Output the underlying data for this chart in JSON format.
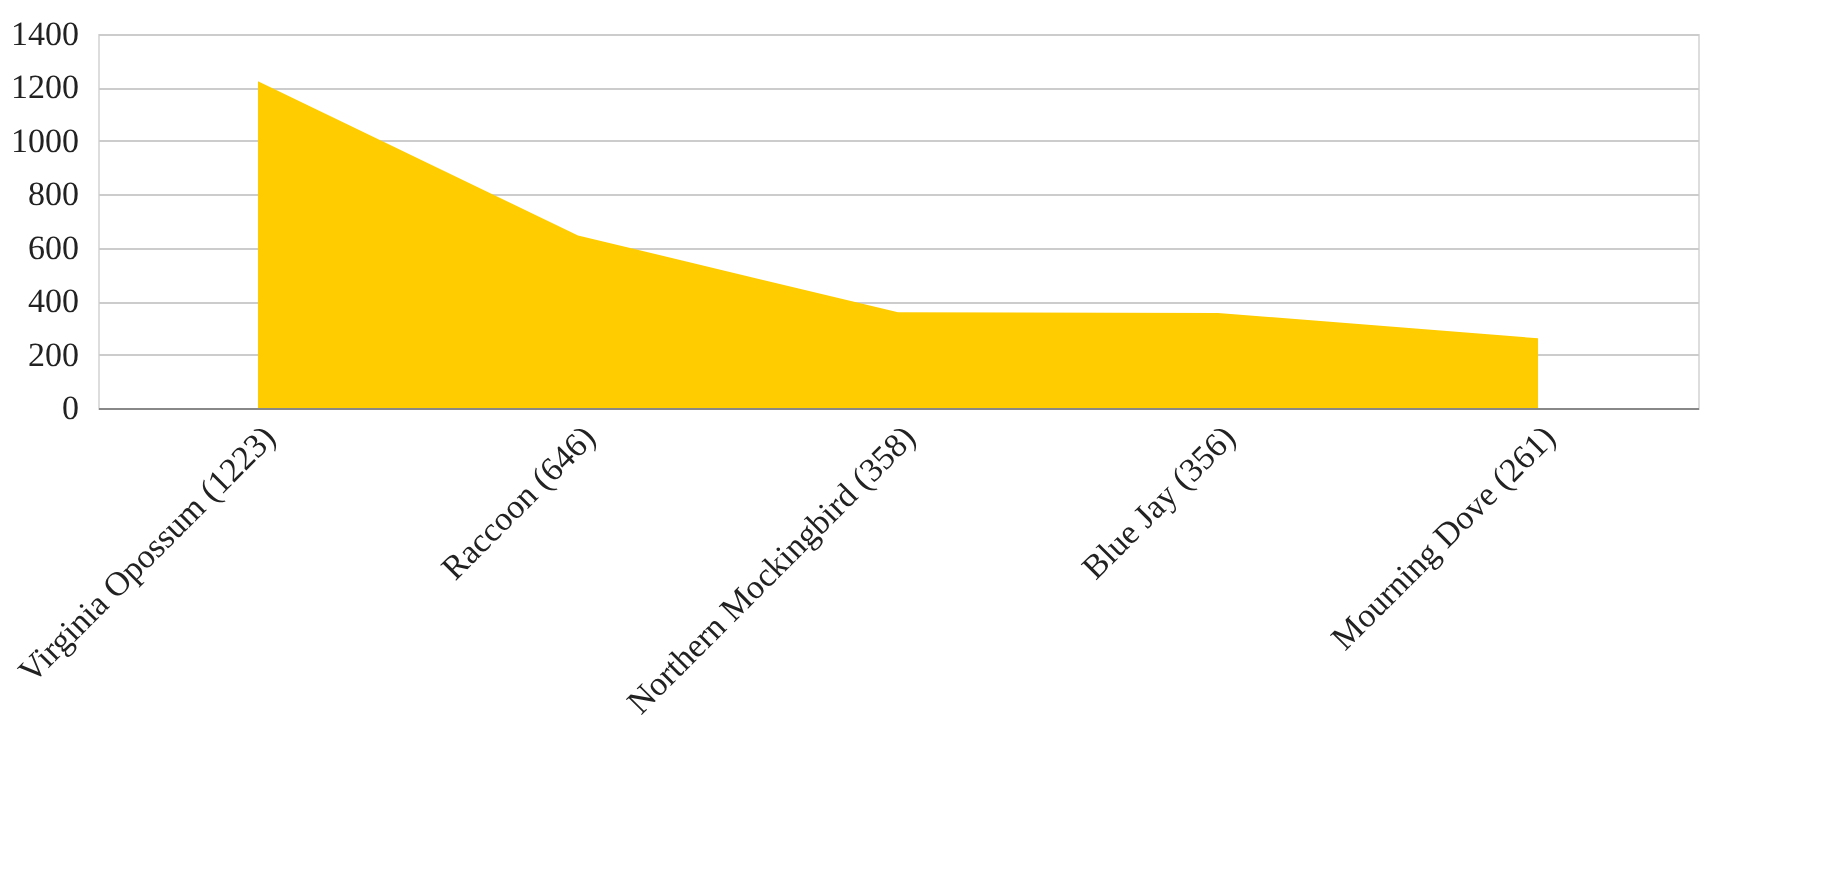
{
  "chart_data": {
    "type": "area",
    "categories": [
      "Virginia Opossum (1223)",
      "Raccoon (646)",
      "Northern Mockingbird (358)",
      "Blue Jay (356)",
      "Mourning Dove (261)"
    ],
    "values": [
      1223,
      646,
      358,
      356,
      261
    ],
    "color": "#ffcc00",
    "ylim": [
      0,
      1400
    ],
    "yticks": [
      0,
      200,
      400,
      600,
      800,
      1000,
      1200,
      1400
    ],
    "grid": "y"
  }
}
